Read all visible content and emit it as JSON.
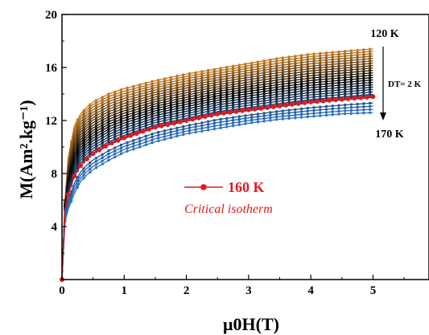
{
  "chart_data": {
    "type": "scatter",
    "xlabel": "μ0H(T)",
    "ylabel": "M(Am².kg⁻¹)",
    "xlim": [
      0,
      5.9
    ],
    "ylim": [
      0,
      20
    ],
    "x_ticks": [
      "0",
      "1",
      "2",
      "3",
      "4",
      "5"
    ],
    "y_ticks": [
      "4",
      "8",
      "12",
      "16",
      "20"
    ],
    "x": [
      0.0,
      0.05,
      0.1,
      0.2,
      0.3,
      0.4,
      0.5,
      0.75,
      1.0,
      1.5,
      2.0,
      2.5,
      3.0,
      3.5,
      4.0,
      4.5,
      5.0
    ],
    "series": [
      {
        "name": "120 K",
        "values": [
          0.0,
          6.0,
          9.2,
          11.6,
          12.5,
          13.0,
          13.4,
          14.0,
          14.4,
          15.0,
          15.5,
          15.9,
          16.3,
          16.7,
          17.0,
          17.2,
          17.4
        ]
      },
      {
        "name": "160 K",
        "values": [
          0.0,
          5.2,
          6.4,
          7.8,
          8.6,
          9.1,
          9.5,
          10.2,
          10.7,
          11.5,
          12.0,
          12.5,
          12.8,
          13.1,
          13.4,
          13.6,
          13.8
        ]
      },
      {
        "name": "170 K",
        "values": [
          0.0,
          4.4,
          5.3,
          6.5,
          7.4,
          7.9,
          8.3,
          9.0,
          9.6,
          10.4,
          11.0,
          11.4,
          11.8,
          12.1,
          12.3,
          12.5,
          12.6
        ]
      }
    ],
    "num_isotherms": 26,
    "highlight": {
      "series": "160 K",
      "color": "#e31a1c"
    },
    "colors": {
      "low_T": "#c07a20",
      "mid_T": "#000000",
      "high_T": "#2a72c4",
      "highlight": "#e31a1c"
    },
    "annotations": {
      "top_temp": "120 K",
      "bottom_temp": "170 K",
      "step": "DT= 2 K",
      "legend_label": "160 K",
      "legend_note": "Critical isotherm"
    },
    "grid": false,
    "legend_position": "center"
  }
}
